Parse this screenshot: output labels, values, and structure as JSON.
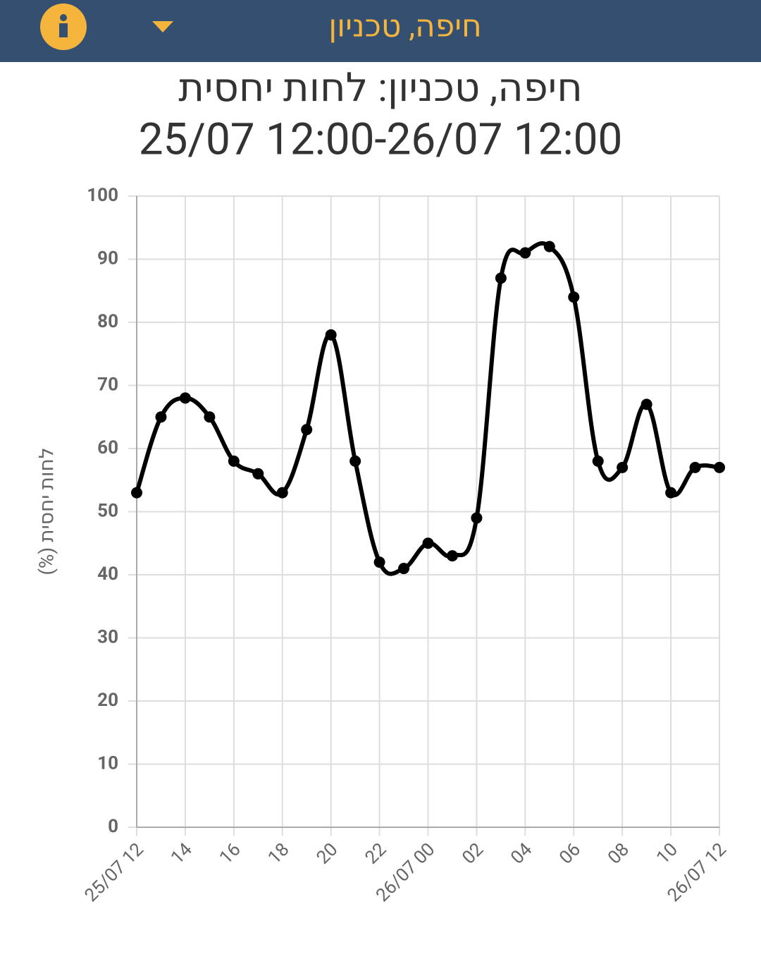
{
  "header": {
    "title": "חיפה, טכניון"
  },
  "chart_data": {
    "type": "line",
    "title": "חיפה, טכניון: לחות יחסית",
    "subtitle": "25/07 12:00-26/07 12:00",
    "y_label": "לחות יחסית (%)",
    "categories": [
      "25/07 12",
      null,
      "14",
      null,
      "16",
      null,
      "18",
      null,
      "20",
      null,
      "22",
      null,
      "26/07 00",
      null,
      "02",
      null,
      "04",
      null,
      "06",
      null,
      "08",
      null,
      "10",
      null,
      "26/07 12"
    ],
    "values": [
      53,
      65,
      68,
      65,
      58,
      56,
      53,
      63,
      78,
      58,
      42,
      41,
      45,
      43,
      49,
      87,
      91,
      92,
      84,
      58,
      57,
      67,
      53,
      57,
      57
    ],
    "color": "#000000",
    "ylim": [
      0,
      100
    ],
    "yticks": [
      0,
      10,
      20,
      30,
      40,
      50,
      60,
      70,
      80,
      90,
      100
    ],
    "grid": true
  }
}
